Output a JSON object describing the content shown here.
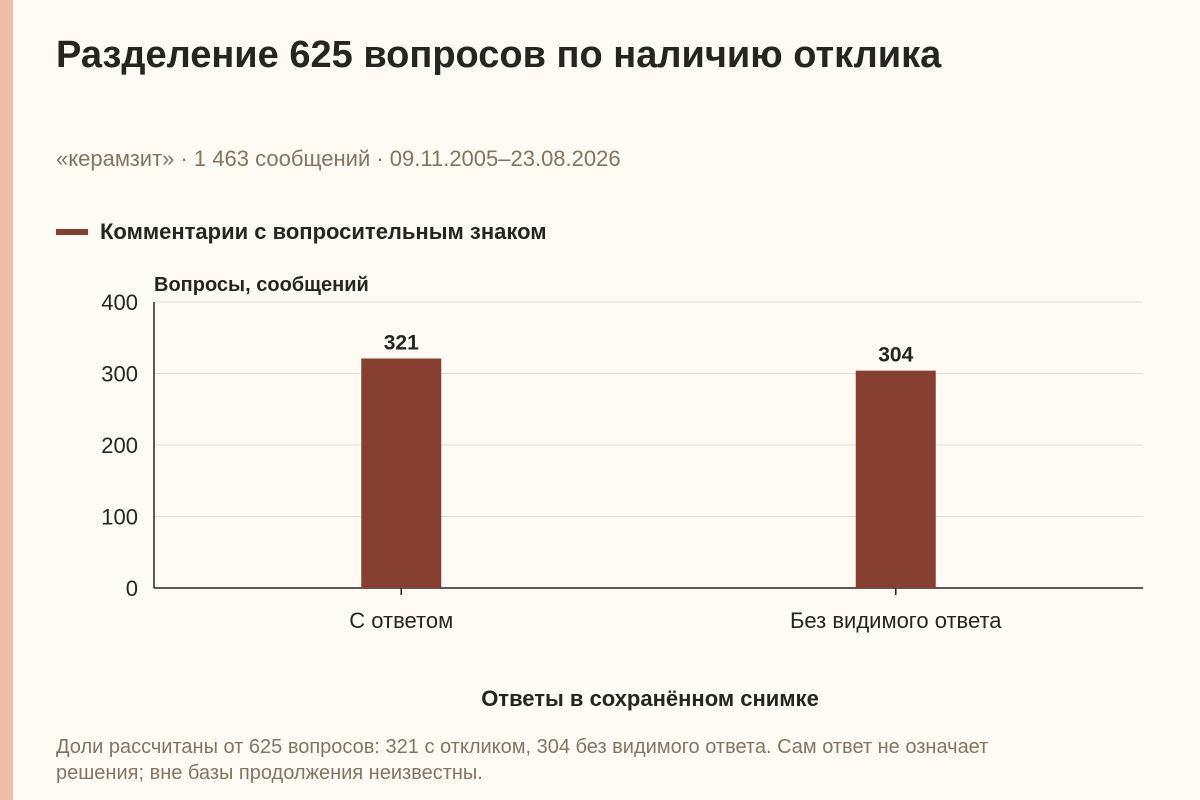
{
  "title": "Разделение 625 вопросов по наличию отклика",
  "subtitle": "«керамзит» · 1 463 сообщений · 09.11.2005–23.08.2026",
  "footnote": "Доли рассчитаны от 625 вопросов: 321 с откликом, 304 без видимого ответа. Сам ответ не означает решения; вне базы продолжения неизвестны.",
  "colors": {
    "bar": "#873f2f",
    "grid": "#dedcd4",
    "axis": "#262621",
    "accent_strip": "#ecbfa6"
  },
  "chart_data": {
    "type": "bar",
    "categories": [
      "С ответом",
      "Без видимого ответа"
    ],
    "series": [
      {
        "name": "Комментарии с вопросительным знаком",
        "values": [
          321,
          304
        ]
      }
    ],
    "ylabel": "Вопросы, сообщений",
    "xlabel": "Ответы в сохранённом снимке",
    "ylim": [
      0,
      400
    ],
    "yticks": [
      0,
      100,
      200,
      300,
      400
    ],
    "grid": true,
    "legend_position": "top-left"
  }
}
